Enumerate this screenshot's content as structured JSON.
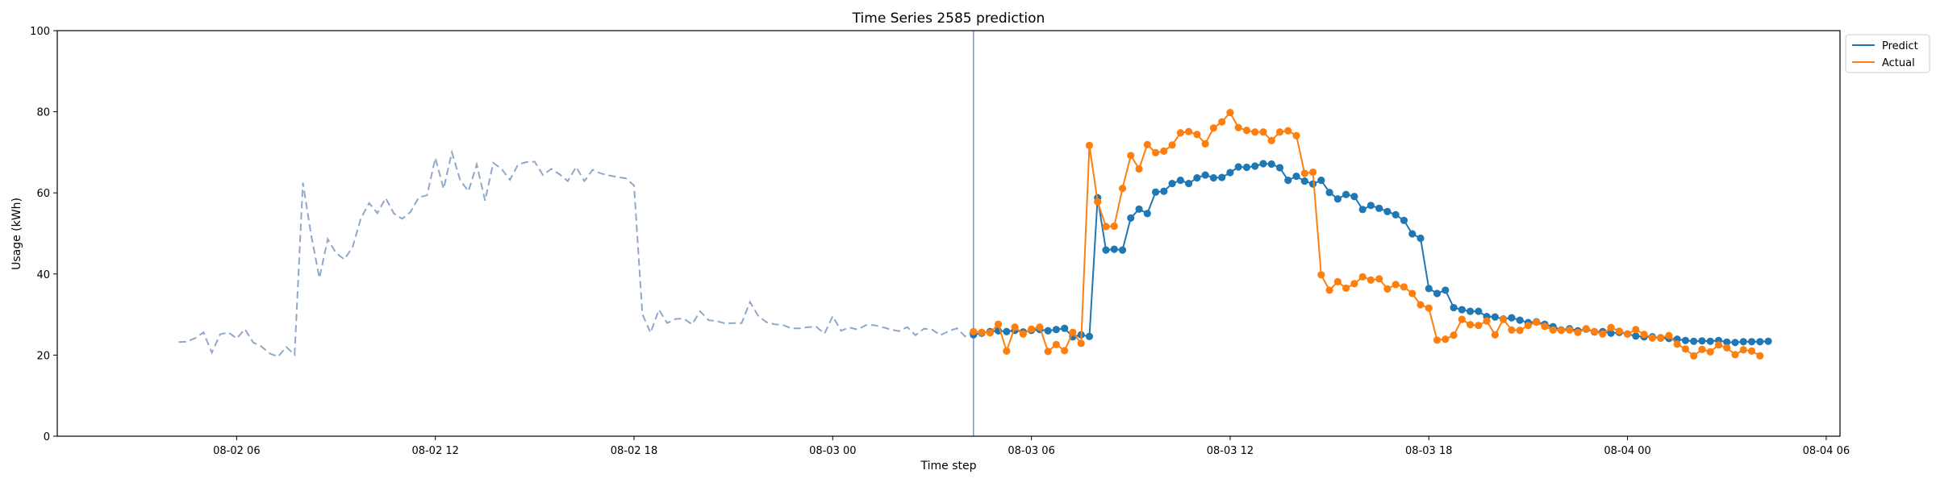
{
  "chart_data": {
    "type": "line",
    "title": "Time Series 2585 prediction",
    "xlabel": "Time step",
    "ylabel": "Usage (kWh)",
    "ylim": [
      0,
      100
    ],
    "y_ticks": [
      0,
      20,
      40,
      60,
      80,
      100
    ],
    "x_range": [
      "2024-08-02 00:35",
      "2024-08-04 06:25"
    ],
    "x_ticks": [
      {
        "t": "2024-08-02 06:00",
        "label": "08-02 06"
      },
      {
        "t": "2024-08-02 12:00",
        "label": "08-02 12"
      },
      {
        "t": "2024-08-02 18:00",
        "label": "08-02 18"
      },
      {
        "t": "2024-08-03 00:00",
        "label": "08-03 00"
      },
      {
        "t": "2024-08-03 06:00",
        "label": "08-03 06"
      },
      {
        "t": "2024-08-03 12:00",
        "label": "08-03 12"
      },
      {
        "t": "2024-08-03 18:00",
        "label": "08-03 18"
      },
      {
        "t": "2024-08-04 00:00",
        "label": "08-04 00"
      },
      {
        "t": "2024-08-04 06:00",
        "label": "08-04 06"
      }
    ],
    "forecast_start": "2024-08-03 04:15",
    "legend": {
      "placement": "top-right",
      "entries": [
        "Predict",
        "Actual"
      ]
    },
    "grid": false,
    "colors": {
      "predict": "#1f77b4",
      "actual": "#ff7f0e",
      "history": "#8fa8c8",
      "divider": "#7f96c0"
    },
    "history": {
      "start": "2024-08-02 04:15",
      "step_minutes": 15,
      "values": [
        23.2,
        23.3,
        24.2,
        25.6,
        20.6,
        25.1,
        25.6,
        24.1,
        26.4,
        23.1,
        22.1,
        20.4,
        19.6,
        22.0,
        20.1,
        62.5,
        49.6,
        39.0,
        48.6,
        45.2,
        43.6,
        46.6,
        53.7,
        57.5,
        55.0,
        58.7,
        54.9,
        53.6,
        55.3,
        58.9,
        59.4,
        68.6,
        61.0,
        70.0,
        63.1,
        60.4,
        67.0,
        58.1,
        67.4,
        65.9,
        63.2,
        67.0,
        67.6,
        67.7,
        64.4,
        65.9,
        64.6,
        62.9,
        66.4,
        62.9,
        65.7,
        64.8,
        64.3,
        63.9,
        63.6,
        61.8,
        30.1,
        25.5,
        31.2,
        27.9,
        28.9,
        29.0,
        27.6,
        30.8,
        28.6,
        28.4,
        27.8,
        27.9,
        27.9,
        33.1,
        29.7,
        28.1,
        27.6,
        27.4,
        26.6,
        26.6,
        26.9,
        27.0,
        25.3,
        29.6,
        26.0,
        26.8,
        26.3,
        27.4,
        27.4,
        26.9,
        26.3,
        25.9,
        26.9,
        24.9,
        26.5,
        26.3,
        24.9,
        25.9,
        26.6,
        24.6,
        26.1
      ]
    },
    "series": [
      {
        "name": "Predict",
        "start": "2024-08-03 04:15",
        "step_minutes": 15,
        "values": [
          25.0,
          25.4,
          25.8,
          26.0,
          25.8,
          26.1,
          25.7,
          26.1,
          26.3,
          26.0,
          26.3,
          26.6,
          24.5,
          25.0,
          24.6,
          58.8,
          45.9,
          46.1,
          45.9,
          53.8,
          56.0,
          54.9,
          60.2,
          60.4,
          62.3,
          63.1,
          62.3,
          63.7,
          64.4,
          63.7,
          63.8,
          65.0,
          66.4,
          66.3,
          66.6,
          67.2,
          67.1,
          66.2,
          63.1,
          64.1,
          62.9,
          62.2,
          63.1,
          60.1,
          58.5,
          59.6,
          59.1,
          55.9,
          56.9,
          56.2,
          55.4,
          54.6,
          53.2,
          49.9,
          48.8,
          36.4,
          35.2,
          36.0,
          31.7,
          31.2,
          30.8,
          30.8,
          29.5,
          29.4,
          28.9,
          29.2,
          28.6,
          28.0,
          28.2,
          27.6,
          27.0,
          26.2,
          26.5,
          26.0,
          26.4,
          25.7,
          25.8,
          25.4,
          25.6,
          25.2,
          24.7,
          24.5,
          24.5,
          24.2,
          24.1,
          23.9,
          23.6,
          23.4,
          23.5,
          23.4,
          23.6,
          23.2,
          23.1,
          23.3,
          23.3,
          23.3,
          23.4
        ]
      },
      {
        "name": "Actual",
        "start": "2024-08-03 04:15",
        "step_minutes": 15,
        "values": [
          25.8,
          25.6,
          25.5,
          27.6,
          21.0,
          26.9,
          25.2,
          26.4,
          26.9,
          20.9,
          22.6,
          21.1,
          25.6,
          22.9,
          71.7,
          57.8,
          51.7,
          51.8,
          61.1,
          69.2,
          65.9,
          71.9,
          69.9,
          70.3,
          71.8,
          74.8,
          75.1,
          74.4,
          72.1,
          76.0,
          77.5,
          79.8,
          76.1,
          75.4,
          75.0,
          75.0,
          72.9,
          75.0,
          75.3,
          74.1,
          64.8,
          65.1,
          39.8,
          36.0,
          38.1,
          36.5,
          37.6,
          39.3,
          38.5,
          38.8,
          36.3,
          37.4,
          36.8,
          35.2,
          32.4,
          31.6,
          23.7,
          23.9,
          24.9,
          28.8,
          27.5,
          27.3,
          28.4,
          25.0,
          28.8,
          26.2,
          26.1,
          27.3,
          28.1,
          27.1,
          26.2,
          26.1,
          26.2,
          25.6,
          26.5,
          25.8,
          25.2,
          26.8,
          25.9,
          25.2,
          26.3,
          25.1,
          24.2,
          24.3,
          24.8,
          22.7,
          21.5,
          19.8,
          21.4,
          20.8,
          22.5,
          21.8,
          20.1,
          21.3,
          21.0,
          19.8
        ]
      }
    ]
  }
}
